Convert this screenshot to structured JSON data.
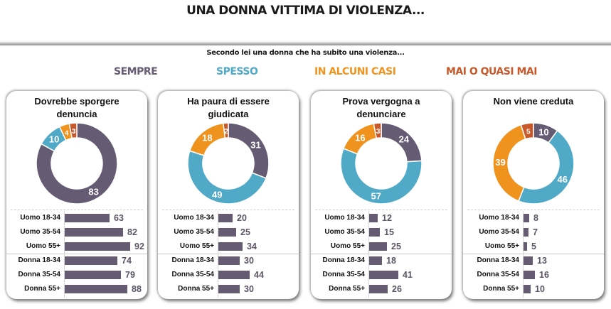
{
  "header": {
    "title": "UNA DONNA VITTIMA DI VIOLENZA...",
    "subtitle": "Secondo lei una donna che ha subito una violenza..."
  },
  "chart_data": {
    "type": "donut+bar",
    "legend": [
      {
        "name": "SEMPRE",
        "color": "#655b73"
      },
      {
        "name": "SPESSO",
        "color": "#4fa9c7"
      },
      {
        "name": "IN ALCUNI CASI",
        "color": "#f0921e"
      },
      {
        "name": "MAI O QUASI MAI",
        "color": "#c8582a"
      }
    ],
    "bar_color": "#655b73",
    "bar_max": 100,
    "categories": [
      "Uomo 18-34",
      "Uomo 35-54",
      "Uomo 55+",
      "Donna 18-34",
      "Donna 35-54",
      "Donna 55+"
    ],
    "panels": [
      {
        "title_lines": [
          "Dovrebbe sporgere",
          "denuncia"
        ],
        "donut": [
          83,
          10,
          4,
          3
        ],
        "bars": [
          63,
          82,
          92,
          74,
          79,
          88
        ]
      },
      {
        "title_lines": [
          "Ha paura di essere",
          "giudicata"
        ],
        "donut": [
          31,
          49,
          18,
          2
        ],
        "bars": [
          20,
          25,
          34,
          30,
          44,
          30
        ]
      },
      {
        "title_lines": [
          "Prova vergogna a",
          "denunciare"
        ],
        "donut": [
          24,
          57,
          16,
          3
        ],
        "bars": [
          12,
          15,
          25,
          18,
          41,
          26
        ]
      },
      {
        "title_lines": [
          "Non viene creduta"
        ],
        "donut": [
          10,
          46,
          39,
          5
        ],
        "bars": [
          8,
          7,
          5,
          13,
          16,
          10
        ]
      }
    ]
  }
}
